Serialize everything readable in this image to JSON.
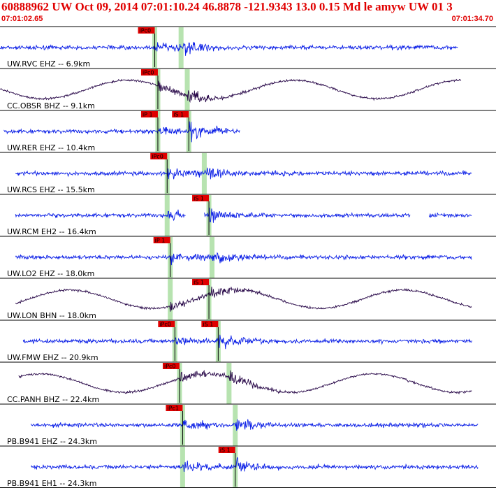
{
  "header": {
    "title": "60888962 UW Oct 09, 2014 07:01:10.24   46.8878 -121.9343 13.0 0.15 Md le amyw UW 01   3",
    "time_start": "07:01:02.65",
    "time_end": "07:01:34.70"
  },
  "colors": {
    "title": "#e00000",
    "trace_short_period": "#0a1ee6",
    "trace_broadband": "#2a0a4a",
    "pick_box": "#e00000",
    "phase_shade": "#b7e3b0",
    "grid": "#000000"
  },
  "chart_data": {
    "type": "line",
    "title": "60888962 UW Oct 09, 2014 07:01:10.24   46.8878 -121.9343 13.0 0.15 Md le amyw UW 01   3",
    "xlim_label": [
      "07:01:02.65",
      "07:01:34.70"
    ],
    "xlim_seconds": [
      0,
      32.05
    ],
    "grid": true,
    "series": [
      {
        "name": "UW.RVC EHZ -- 6.9km",
        "kind": "sp",
        "data_start": 0.0,
        "data_end": 29.6,
        "p_pick": "iPc0",
        "p_time": 10.0,
        "s_pick": "",
        "s_time": 11.7,
        "gaps": []
      },
      {
        "name": "CC.OBSR BHZ -- 9.1km",
        "kind": "bb",
        "data_start": 0.0,
        "data_end": 29.8,
        "p_pick": "iPc0",
        "p_time": 10.2,
        "s_pick": "",
        "s_time": 12.1,
        "gaps": []
      },
      {
        "name": "UW.RER EHZ -- 10.4km",
        "kind": "sp",
        "data_start": 0.25,
        "data_end": 15.5,
        "p_pick": "iP 1",
        "p_time": 10.2,
        "s_pick": "iS 1",
        "s_time": 12.2,
        "gaps": []
      },
      {
        "name": "UW.RCS EHZ -- 15.5km",
        "kind": "sp",
        "data_start": 1.0,
        "data_end": 30.5,
        "p_pick": "iPc0",
        "p_time": 10.8,
        "s_pick": "",
        "s_time": 13.2,
        "gaps": []
      },
      {
        "name": "UW.RCM EH2 -- 16.4km",
        "kind": "sp",
        "data_start": 1.0,
        "data_end": 30.5,
        "p_pick": "",
        "p_time": 10.8,
        "s_pick": "iS 1",
        "s_time": 13.5,
        "gaps": [
          [
            12.0,
            13.2
          ],
          [
            26.5,
            27.7
          ]
        ]
      },
      {
        "name": "UW.LO2 EHZ -- 18.0km",
        "kind": "sp",
        "data_start": 1.0,
        "data_end": 30.5,
        "p_pick": "iP 1",
        "p_time": 11.0,
        "s_pick": "",
        "s_time": 13.7,
        "gaps": []
      },
      {
        "name": "UW.LON BHN -- 18.0km",
        "kind": "bb",
        "data_start": 1.0,
        "data_end": 30.5,
        "p_pick": "",
        "p_time": 11.0,
        "s_pick": "iS 1",
        "s_time": 13.5,
        "gaps": []
      },
      {
        "name": "UW.FMW EHZ -- 20.9km",
        "kind": "sp",
        "data_start": 1.5,
        "data_end": 30.5,
        "p_pick": "iPc0",
        "p_time": 11.3,
        "s_pick": "iS 1",
        "s_time": 14.1,
        "gaps": []
      },
      {
        "name": "CC.PANH BHZ -- 22.4km",
        "kind": "bb",
        "data_start": 1.2,
        "data_end": 30.5,
        "p_pick": "iPc0",
        "p_time": 11.6,
        "s_pick": "",
        "s_time": 14.8,
        "gaps": []
      },
      {
        "name": "PB.B941 EHZ -- 24.3km",
        "kind": "sp",
        "data_start": 2.0,
        "data_end": 30.9,
        "p_pick": "iPc1",
        "p_time": 11.8,
        "s_pick": "",
        "s_time": 15.2,
        "gaps": []
      },
      {
        "name": "PB.B941 EH1 -- 24.3km",
        "kind": "sp",
        "data_start": 2.0,
        "data_end": 30.9,
        "p_pick": "",
        "p_time": 11.8,
        "s_pick": "iS 1",
        "s_time": 15.2,
        "gaps": []
      }
    ]
  }
}
